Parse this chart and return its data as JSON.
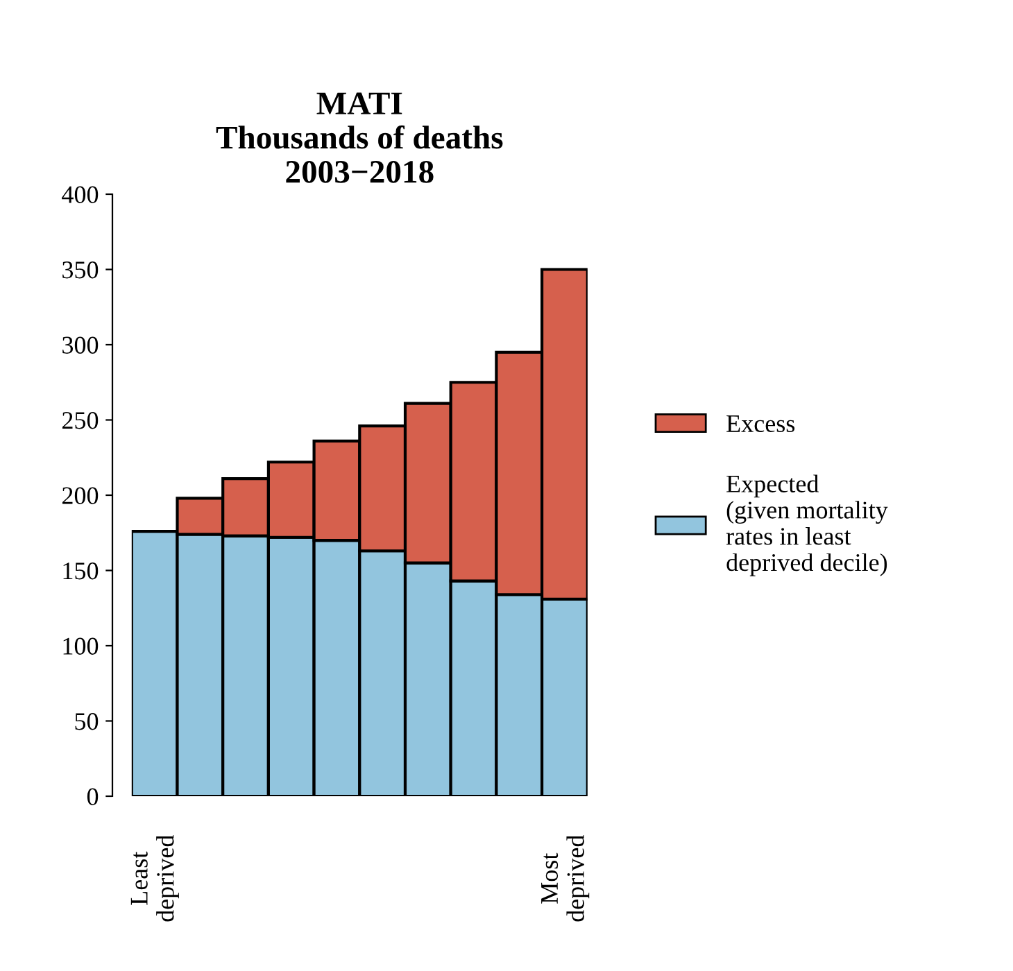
{
  "chart_data": {
    "type": "bar",
    "title": "MATI\nThousands of deaths\n2003−2018",
    "stacked": true,
    "categories": [
      "Least\ndeprived",
      null,
      null,
      null,
      null,
      null,
      null,
      null,
      null,
      "Most\ndeprived"
    ],
    "series": [
      {
        "name": "Expected\n(given mortality\nrates in least\ndeprived decile)",
        "color": "#92c5de",
        "values": [
          176,
          174,
          173,
          172,
          170,
          163,
          155,
          143,
          134,
          131
        ]
      },
      {
        "name": "Excess",
        "color": "#d6604d",
        "values": [
          null,
          24,
          38,
          50,
          66,
          83,
          106,
          132,
          161,
          219
        ]
      }
    ],
    "ylim": [
      0,
      400
    ],
    "yticks": [
      0,
      50,
      100,
      150,
      200,
      250,
      300,
      350,
      400
    ],
    "grid": false,
    "legend": "right"
  }
}
